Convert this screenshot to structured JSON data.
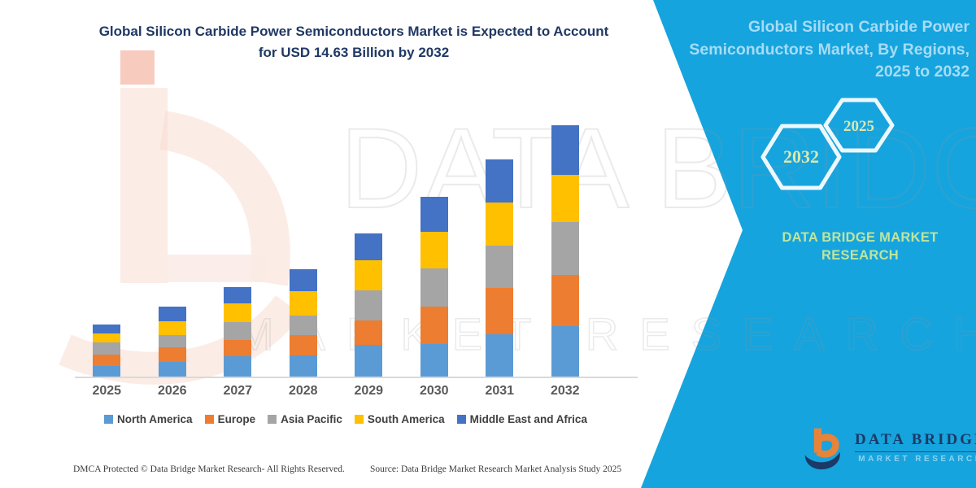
{
  "header": {
    "title_line1": "Global Silicon Carbide Power Semiconductors Market is Expected to Account",
    "title_line2": "for USD 14.63 Billion by 2032"
  },
  "chart_data": {
    "type": "bar",
    "stacked": true,
    "title": "Global Silicon Carbide Power Semiconductors Market is Expected to Account for USD 14.63 Billion by 2032",
    "unit": "USD Billion",
    "categories": [
      "2025",
      "2026",
      "2027",
      "2028",
      "2029",
      "2030",
      "2031",
      "2032"
    ],
    "series": [
      {
        "name": "North America",
        "color": "#5B9BD5",
        "values": [
          0.62,
          0.85,
          1.18,
          1.23,
          1.85,
          1.89,
          2.46,
          2.94
        ]
      },
      {
        "name": "Europe",
        "color": "#ED7D31",
        "values": [
          0.66,
          0.85,
          0.95,
          1.18,
          1.42,
          2.18,
          2.7,
          2.98
        ]
      },
      {
        "name": "Asia Pacific",
        "color": "#A5A5A5",
        "values": [
          0.71,
          0.71,
          1.04,
          1.14,
          1.75,
          2.23,
          2.46,
          3.08
        ]
      },
      {
        "name": "South America",
        "color": "#FFC000",
        "values": [
          0.52,
          0.8,
          1.09,
          1.42,
          1.75,
          2.13,
          2.51,
          2.74
        ]
      },
      {
        "name": "Middle East and Africa",
        "color": "#4472C4",
        "values": [
          0.52,
          0.85,
          0.95,
          1.28,
          1.56,
          2.04,
          2.51,
          2.89
        ]
      }
    ],
    "stack_order": "bottom_to_top",
    "totals": [
      3.03,
      4.06,
      5.21,
      6.25,
      8.33,
      10.47,
      12.64,
      14.63
    ],
    "highlight_value_2032": 14.63,
    "ylim": [
      0,
      15.3
    ],
    "gridlines": false,
    "y_axis_visible": false,
    "legend_position": "bottom"
  },
  "side_panel": {
    "title": "Global Silicon Carbide Power Semiconductors Market, By Regions, 2025 to 2032",
    "hexagon_labels": [
      "2032",
      "2025"
    ],
    "brand_line1": "DATA BRIDGE MARKET",
    "brand_line2": "RESEARCH",
    "logo_name": "DATA BRIDGE",
    "logo_tagline": "MARKET RESEARCH"
  },
  "watermark": {
    "line1": "DATA BRIDGE",
    "line2": "MARKET RESEARCH"
  },
  "footer": {
    "dmca": "DMCA Protected © Data Bridge Market Research-  All Rights Reserved.",
    "source": "Source: Data Bridge Market Research  Market Analysis Study 2025"
  },
  "colors": {
    "panel_teal": "#16A4DE",
    "title_navy": "#203864",
    "axis_line": "#D9D9D9",
    "axis_label": "#595959",
    "legend_text": "#404040",
    "panel_title_text": "#A6DCF5",
    "hexagon_stroke": "#EDF8FD",
    "hexagon_text": "#D8E8B0",
    "brand_text": "#BFE49E",
    "logo_navy": "#1B3A66",
    "logo_orange": "#E8833A"
  }
}
